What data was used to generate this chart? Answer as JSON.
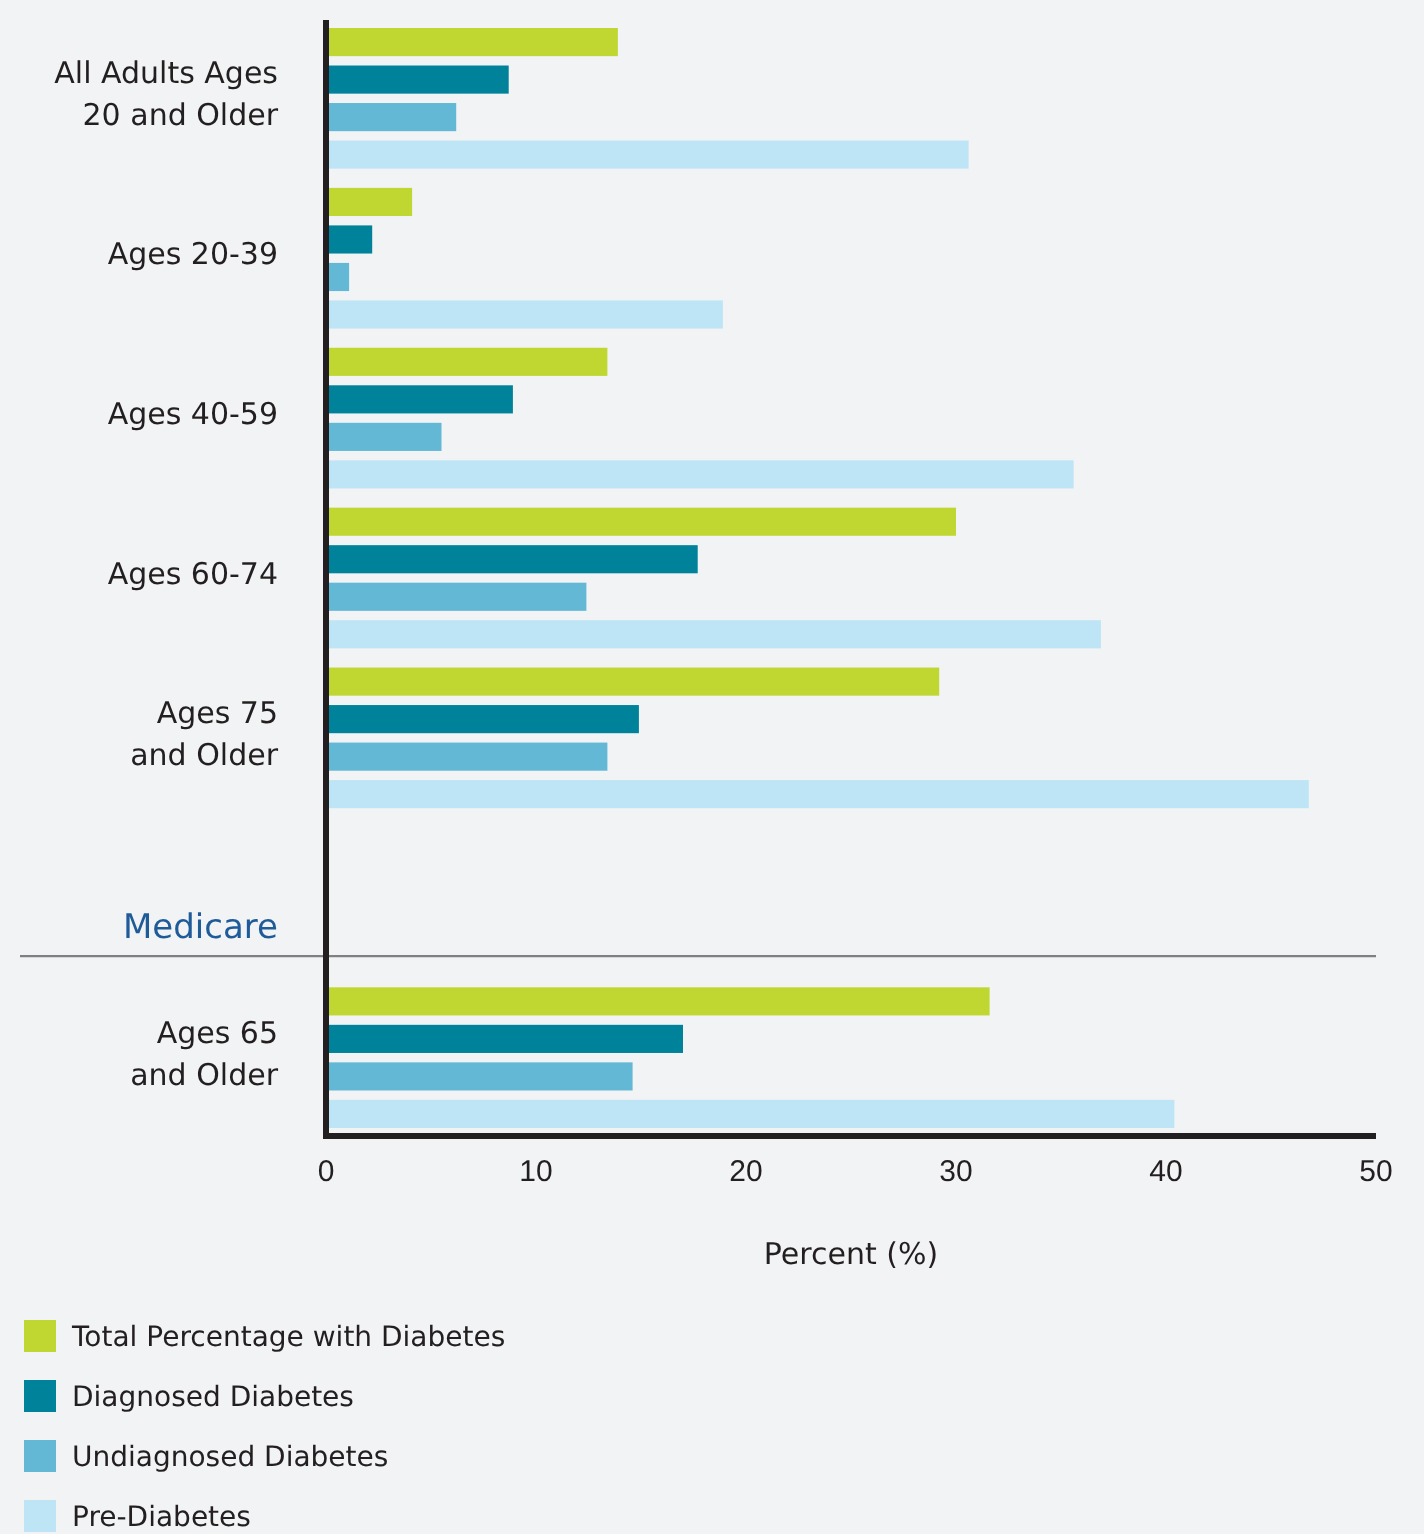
{
  "chart_data": {
    "type": "bar",
    "orientation": "horizontal",
    "xlabel": "Percent (%)",
    "categories": [
      "All Adults Ages 20 and Older",
      "Ages 20-39",
      "Ages 40-59",
      "Ages 60-74",
      "Ages 75 and Older",
      "Medicare",
      "Ages 65 and Older"
    ],
    "series": [
      {
        "name": "Total Percentage with Diabetes",
        "color": "#c0d732",
        "values": [
          13.9,
          4.1,
          13.4,
          30.0,
          29.2,
          null,
          31.6
        ]
      },
      {
        "name": "Diagnosed Diabetes",
        "color": "#00829a",
        "values": [
          8.7,
          2.2,
          8.9,
          17.7,
          14.9,
          null,
          17.0
        ]
      },
      {
        "name": "Undiagnosed Diabetes",
        "color": "#62b8d5",
        "values": [
          6.2,
          1.1,
          5.5,
          12.4,
          13.4,
          null,
          14.6
        ]
      },
      {
        "name": "Pre-Diabetes",
        "color": "#bee5f6",
        "values": [
          30.6,
          18.9,
          35.6,
          36.9,
          46.8,
          null,
          40.4
        ]
      }
    ],
    "xlim": [
      0,
      50
    ],
    "xticks": [
      0,
      10,
      20,
      30,
      40,
      50
    ],
    "ref_lines": [
      {
        "axis": "y",
        "value": "Medicare",
        "color": "#808080"
      }
    ],
    "legend": "bottom",
    "grid": false
  }
}
